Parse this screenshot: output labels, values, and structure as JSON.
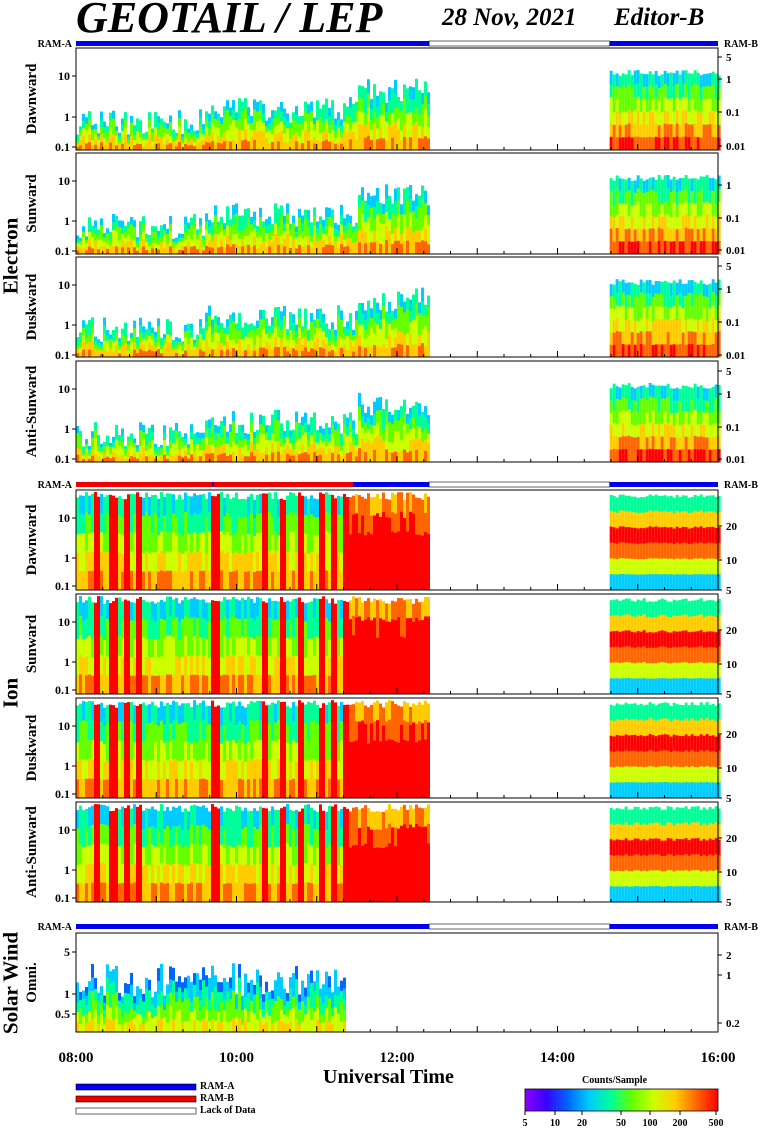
{
  "title": "GEOTAIL / LEP",
  "date": "28 Nov, 2021",
  "editor": "Editor-B",
  "groups": {
    "electron": "Electron",
    "ion": "Ion",
    "solar_wind": "Solar Wind"
  },
  "ram_a": "RAM-A",
  "ram_b": "RAM-B",
  "xlabel": "Universal Time",
  "legend": {
    "ram_a": "RAM-A",
    "ram_b": "RAM-B",
    "lack": "Lack of Data"
  },
  "colorbar": {
    "title": "Counts/Sample",
    "ticks": [
      "5",
      "10",
      "20",
      "50",
      "100",
      "200",
      "500"
    ],
    "colors": [
      "#8b00ff",
      "#3a00ff",
      "#0066ff",
      "#00ccff",
      "#00ff99",
      "#66ff00",
      "#ccff00",
      "#ffcc00",
      "#ff6600",
      "#ff0000"
    ]
  },
  "chart_data": {
    "type": "heatmap",
    "x_ticks": [
      "08:00",
      "10:00",
      "12:00",
      "14:00",
      "16:00"
    ],
    "xlim_hours": [
      8,
      16
    ],
    "data_gap_hours": [
      12.4,
      14.65
    ],
    "panels": [
      {
        "group": "Electron",
        "label": "Dawnward",
        "yleft": [
          "10",
          "1",
          "0.1"
        ],
        "yright": [
          "5",
          "1",
          "0.1",
          "0.01"
        ]
      },
      {
        "group": "Electron",
        "label": "Sunward",
        "yleft": [
          "10",
          "1",
          "0.1"
        ],
        "yright": [
          "1",
          "0.1",
          "0.01"
        ]
      },
      {
        "group": "Electron",
        "label": "Duskward",
        "yleft": [
          "10",
          "1",
          "0.1"
        ],
        "yright": [
          "5",
          "1",
          "0.1",
          "0.01"
        ]
      },
      {
        "group": "Electron",
        "label": "Anti-Sunward",
        "yleft": [
          "10",
          "1",
          "0.1"
        ],
        "yright": [
          "5",
          "1",
          "0.1",
          "0.01"
        ]
      },
      {
        "group": "Ion",
        "label": "Dawnward",
        "yleft": [
          "10",
          "1",
          "0.1"
        ],
        "yright": [
          "20",
          "10",
          "5"
        ]
      },
      {
        "group": "Ion",
        "label": "Sunward",
        "yleft": [
          "10",
          "1",
          "0.1"
        ],
        "yright": [
          "20",
          "10",
          "5"
        ]
      },
      {
        "group": "Ion",
        "label": "Duskward",
        "yleft": [
          "10",
          "1",
          "0.1"
        ],
        "yright": [
          "20",
          "10",
          "5"
        ]
      },
      {
        "group": "Ion",
        "label": "Anti-Sunward",
        "yleft": [
          "10",
          "1",
          "0.1"
        ],
        "yright": [
          "20",
          "10",
          "5"
        ]
      },
      {
        "group": "Solar Wind",
        "label": "Omni.",
        "yleft": [
          "5",
          "1",
          "0.5"
        ],
        "yright": [
          "2",
          "1",
          "0.2"
        ]
      }
    ]
  }
}
